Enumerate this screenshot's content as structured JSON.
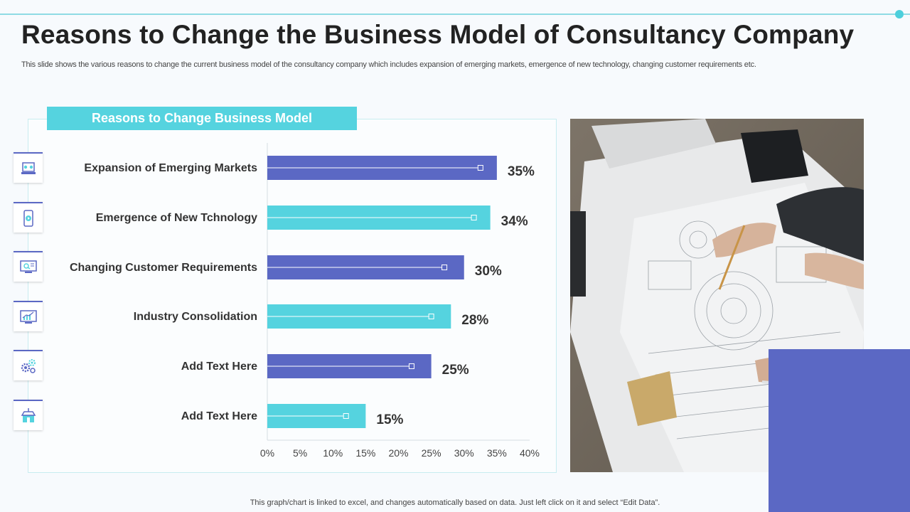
{
  "slide": {
    "title": "Reasons to Change the Business Model of Consultancy Company",
    "subtitle": "This slide shows the various reasons to change the current business model of the consultancy company which includes expansion of emerging markets, emergence of new technology, changing customer requirements etc.",
    "footer": "This graph/chart is linked to excel,  and changes automatically based on data. Just left click on it and select “Edit Data”."
  },
  "colors": {
    "accent_blue": "#5b68c4",
    "accent_cyan": "#55d3df"
  },
  "icons": [
    "meeting-icon",
    "mobile-play-icon",
    "monitor-search-icon",
    "chart-monitor-icon",
    "gears-icon",
    "store-icon"
  ],
  "chart_data": {
    "type": "bar",
    "orientation": "horizontal",
    "title": "Reasons to Change Business Model",
    "categories": [
      "Expansion of Emerging Markets",
      "Emergence of New Tchnology",
      "Changing Customer Requirements",
      "Industry Consolidation",
      "Add Text Here",
      "Add Text Here"
    ],
    "values": [
      35,
      34,
      30,
      28,
      25,
      15
    ],
    "value_labels": [
      "35%",
      "34%",
      "30%",
      "28%",
      "25%",
      "15%"
    ],
    "bar_colors": [
      "#5b68c4",
      "#55d3df",
      "#5b68c4",
      "#55d3df",
      "#5b68c4",
      "#55d3df"
    ],
    "marker_values": [
      32.5,
      31.5,
      27,
      25,
      22,
      12
    ],
    "xlim": [
      0,
      40
    ],
    "xticks": [
      "0%",
      "5%",
      "10%",
      "15%",
      "20%",
      "25%",
      "30%",
      "35%",
      "40%"
    ],
    "grid": false,
    "legend": "none"
  }
}
